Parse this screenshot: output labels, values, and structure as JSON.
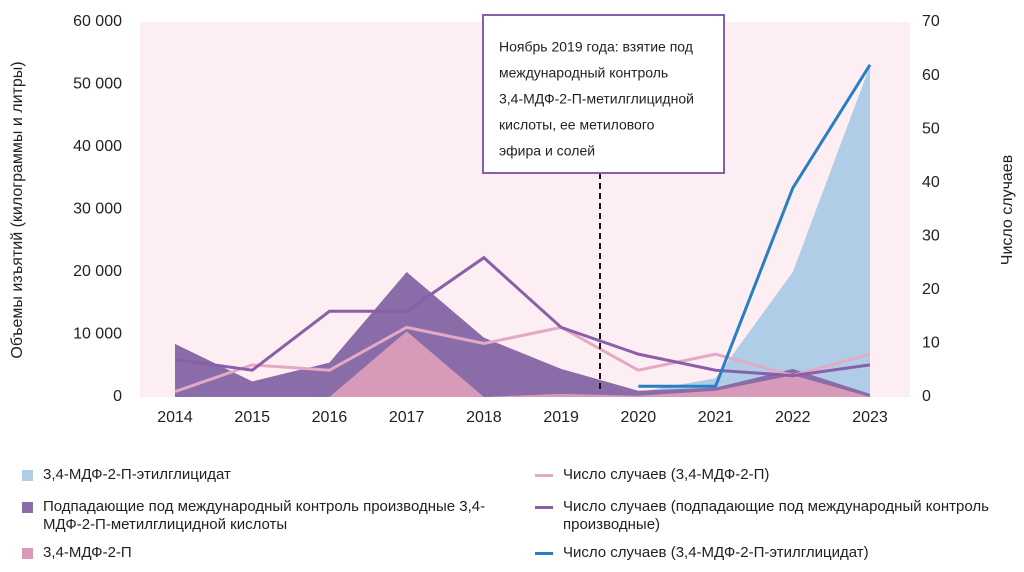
{
  "chart_data": {
    "type": "area",
    "y_label": "Объемы изъятий (килограммы и литры)",
    "y2_label": "Число случаев",
    "categories": [
      "2014",
      "2015",
      "2016",
      "2017",
      "2018",
      "2019",
      "2020",
      "2021",
      "2022",
      "2023"
    ],
    "ylim": [
      0,
      60000
    ],
    "yticks": [
      0,
      {
        "value": 10000,
        "label": "10 000"
      },
      {
        "value": 20000,
        "label": "20 000"
      },
      {
        "value": 30000,
        "label": "30 000"
      },
      {
        "value": 40000,
        "label": "40 000"
      },
      {
        "value": 50000,
        "label": "50 000"
      },
      {
        "value": 60000,
        "label": "60 000"
      }
    ],
    "y2lim": [
      0,
      70
    ],
    "y2ticks": [
      0,
      10,
      20,
      30,
      40,
      50,
      60,
      70
    ],
    "annotation": {
      "lines": [
        "Ноябрь 2019 года: взятие под",
        "международный контроль",
        "3,4-МДФ-2-П-метилглицидной",
        "кислоты, ее метилового",
        "эфира и солей"
      ]
    },
    "series": [
      {
        "name": "3,4-МДФ-2-П-этилглицидат",
        "type": "area",
        "color": "#b0cde8",
        "values": [
          0,
          0,
          0,
          0,
          0,
          0,
          800,
          3000,
          20000,
          53000
        ]
      },
      {
        "name": "Подпадающие под международный контроль производные 3,4-МДФ-2-П-метилглицидной кислоты",
        "type": "area",
        "color": "#8a6ca8",
        "values": [
          8500,
          2500,
          5500,
          20000,
          9500,
          4500,
          1000,
          1500,
          4500,
          500
        ]
      },
      {
        "name": "3,4-МДФ-2-П",
        "type": "area",
        "color": "#d79ab9",
        "values": [
          0,
          0,
          0,
          10500,
          0,
          500,
          200,
          1000,
          3500,
          0
        ]
      },
      {
        "name": "Число случаев (3,4-МДФ-2-П)",
        "type": "line",
        "axis": "y2",
        "color": "#e3a9c5",
        "values": [
          1,
          6,
          5,
          13,
          10,
          13,
          5,
          8,
          4,
          8
        ]
      },
      {
        "name": "Число случаев (подпадающие под международный контроль производные)",
        "type": "line",
        "axis": "y2",
        "color": "#8a5ea8",
        "values": [
          7,
          5,
          16,
          16,
          26,
          13,
          8,
          5,
          4,
          6
        ]
      },
      {
        "name": "Число случаев (3,4-МДФ-2-П-этилглицидат)",
        "type": "line",
        "axis": "y2",
        "color": "#2a7fc4",
        "values": [
          null,
          null,
          null,
          null,
          null,
          null,
          2,
          2,
          39,
          62
        ]
      }
    ]
  }
}
